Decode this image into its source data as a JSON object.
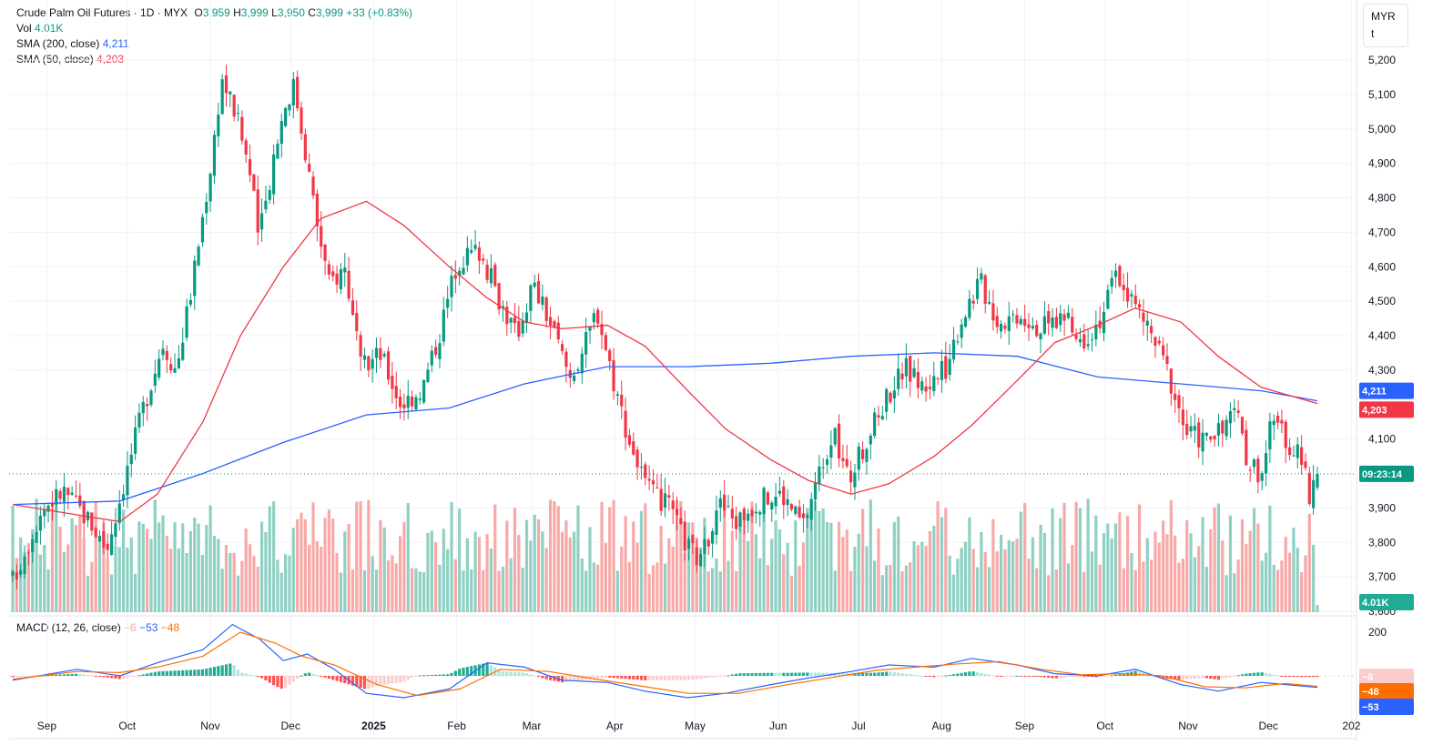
{
  "legend": {
    "symbol": "Crude Palm Oil Futures · 1D · MYX",
    "open_label": "O",
    "open": "3,959",
    "high_label": "H",
    "high": "3,999",
    "low_label": "L",
    "low": "3,950",
    "close_label": "C",
    "close": "3,999",
    "change": "+33 (+0.83%)",
    "vol_label": "Vol",
    "vol": "4.01K",
    "sma200_label": "SMA (200, close)",
    "sma200": "4,211",
    "sma50_label": "SMA (50, close)",
    "sma50": "4,203"
  },
  "macd_legend": {
    "label": "MACD (12, 26, close)",
    "hist": "−6",
    "macd": "−53",
    "signal": "−48"
  },
  "unit": {
    "currency": "MYR",
    "unit": "t"
  },
  "badges": {
    "sma200": "4,211",
    "sma50": "4,203",
    "timer": "09:23:14",
    "volume": "4.01K",
    "macd_hist": "−6",
    "macd_signal": "−48",
    "macd": "−53"
  },
  "colors": {
    "up": "#089981",
    "down": "#f23645",
    "sma200": "#2962ff",
    "sma50": "#f23645",
    "macd": "#2962ff",
    "signal": "#ff6d00"
  },
  "chart_data": {
    "type": "candlestick",
    "price_ticks": [
      "5,200",
      "5,100",
      "5,000",
      "4,900",
      "4,800",
      "4,700",
      "4,600",
      "4,500",
      "4,400",
      "4,300",
      "4,100",
      "3,900",
      "3,800",
      "3,700",
      "3,600"
    ],
    "macd_ticks": [
      "200"
    ],
    "x_ticks": [
      "Sep",
      "Oct",
      "Nov",
      "Dec",
      "2025",
      "Feb",
      "Mar",
      "Apr",
      "May",
      "Jun",
      "Jul",
      "Aug",
      "Sep",
      "Oct",
      "Nov",
      "Dec",
      "202"
    ],
    "ylim": [
      3550,
      5230
    ],
    "anchors": [
      [
        "2024-08-22",
        3690
      ],
      [
        "2024-09-02",
        3900
      ],
      [
        "2024-09-10",
        3950
      ],
      [
        "2024-09-20",
        3860
      ],
      [
        "2024-09-26",
        3780
      ],
      [
        "2024-10-03",
        3990
      ],
      [
        "2024-10-10",
        4200
      ],
      [
        "2024-10-17",
        4380
      ],
      [
        "2024-10-22",
        4300
      ],
      [
        "2024-10-28",
        4550
      ],
      [
        "2024-11-04",
        4900
      ],
      [
        "2024-11-08",
        5150
      ],
      [
        "2024-11-13",
        5050
      ],
      [
        "2024-11-18",
        4900
      ],
      [
        "2024-11-22",
        4680
      ],
      [
        "2024-11-28",
        4950
      ],
      [
        "2024-12-02",
        5080
      ],
      [
        "2024-12-05",
        5130
      ],
      [
        "2024-12-09",
        4950
      ],
      [
        "2024-12-13",
        4750
      ],
      [
        "2024-12-18",
        4550
      ],
      [
        "2024-12-24",
        4600
      ],
      [
        "2024-12-30",
        4300
      ],
      [
        "2025-01-06",
        4350
      ],
      [
        "2025-01-14",
        4200
      ],
      [
        "2025-01-22",
        4250
      ],
      [
        "2025-01-28",
        4400
      ],
      [
        "2025-02-04",
        4620
      ],
      [
        "2025-02-12",
        4650
      ],
      [
        "2025-02-20",
        4500
      ],
      [
        "2025-02-26",
        4400
      ],
      [
        "2025-03-04",
        4550
      ],
      [
        "2025-03-10",
        4450
      ],
      [
        "2025-03-18",
        4280
      ],
      [
        "2025-03-24",
        4380
      ],
      [
        "2025-03-28",
        4480
      ],
      [
        "2025-04-03",
        4280
      ],
      [
        "2025-04-09",
        4100
      ],
      [
        "2025-04-16",
        3950
      ],
      [
        "2025-04-24",
        3900
      ],
      [
        "2025-04-30",
        3800
      ],
      [
        "2025-05-06",
        3740
      ],
      [
        "2025-05-12",
        3920
      ],
      [
        "2025-05-19",
        3860
      ],
      [
        "2025-05-27",
        3920
      ],
      [
        "2025-06-05",
        3940
      ],
      [
        "2025-06-13",
        3850
      ],
      [
        "2025-06-18",
        3980
      ],
      [
        "2025-06-24",
        4120
      ],
      [
        "2025-06-30",
        3980
      ],
      [
        "2025-07-07",
        4100
      ],
      [
        "2025-07-14",
        4220
      ],
      [
        "2025-07-21",
        4310
      ],
      [
        "2025-07-28",
        4250
      ],
      [
        "2025-08-05",
        4300
      ],
      [
        "2025-08-11",
        4450
      ],
      [
        "2025-08-18",
        4560
      ],
      [
        "2025-08-25",
        4440
      ],
      [
        "2025-09-02",
        4470
      ],
      [
        "2025-09-10",
        4420
      ],
      [
        "2025-09-18",
        4460
      ],
      [
        "2025-09-24",
        4380
      ],
      [
        "2025-10-02",
        4450
      ],
      [
        "2025-10-08",
        4580
      ],
      [
        "2025-10-14",
        4500
      ],
      [
        "2025-10-20",
        4420
      ],
      [
        "2025-10-27",
        4300
      ],
      [
        "2025-11-03",
        4120
      ],
      [
        "2025-11-10",
        4100
      ],
      [
        "2025-11-17",
        4120
      ],
      [
        "2025-11-21",
        4200
      ],
      [
        "2025-11-25",
        4050
      ],
      [
        "2025-12-01",
        4000
      ],
      [
        "2025-12-05",
        4150
      ],
      [
        "2025-12-11",
        4090
      ],
      [
        "2025-12-16",
        4040
      ],
      [
        "2025-12-19",
        3940
      ],
      [
        "2025-12-22",
        3999
      ]
    ],
    "sma50_points": [
      [
        "2024-08-22",
        3910
      ],
      [
        "2024-09-15",
        3880
      ],
      [
        "2024-10-01",
        3860
      ],
      [
        "2024-10-15",
        3940
      ],
      [
        "2024-11-01",
        4150
      ],
      [
        "2024-11-15",
        4400
      ],
      [
        "2024-12-01",
        4600
      ],
      [
        "2024-12-15",
        4740
      ],
      [
        "2025-01-01",
        4790
      ],
      [
        "2025-01-15",
        4720
      ],
      [
        "2025-02-01",
        4600
      ],
      [
        "2025-02-15",
        4510
      ],
      [
        "2025-03-01",
        4440
      ],
      [
        "2025-03-15",
        4420
      ],
      [
        "2025-04-01",
        4430
      ],
      [
        "2025-04-15",
        4370
      ],
      [
        "2025-05-01",
        4240
      ],
      [
        "2025-05-15",
        4130
      ],
      [
        "2025-06-01",
        4040
      ],
      [
        "2025-06-15",
        3980
      ],
      [
        "2025-07-01",
        3940
      ],
      [
        "2025-07-15",
        3970
      ],
      [
        "2025-08-01",
        4050
      ],
      [
        "2025-08-15",
        4140
      ],
      [
        "2025-09-01",
        4270
      ],
      [
        "2025-09-15",
        4380
      ],
      [
        "2025-10-01",
        4430
      ],
      [
        "2025-10-15",
        4480
      ],
      [
        "2025-11-01",
        4440
      ],
      [
        "2025-11-15",
        4340
      ],
      [
        "2025-12-01",
        4250
      ],
      [
        "2025-12-22",
        4203
      ]
    ],
    "sma200_points": [
      [
        "2024-08-22",
        3910
      ],
      [
        "2024-10-01",
        3920
      ],
      [
        "2024-11-01",
        4000
      ],
      [
        "2024-12-01",
        4090
      ],
      [
        "2025-01-01",
        4170
      ],
      [
        "2025-02-01",
        4190
      ],
      [
        "2025-03-01",
        4260
      ],
      [
        "2025-04-01",
        4310
      ],
      [
        "2025-05-01",
        4310
      ],
      [
        "2025-06-01",
        4320
      ],
      [
        "2025-07-01",
        4340
      ],
      [
        "2025-08-01",
        4350
      ],
      [
        "2025-09-01",
        4340
      ],
      [
        "2025-10-01",
        4280
      ],
      [
        "2025-11-01",
        4260
      ],
      [
        "2025-12-01",
        4240
      ],
      [
        "2025-12-22",
        4211
      ]
    ],
    "macd_scale": [
      -150,
      260
    ],
    "macd_points": [
      [
        "2024-08-22",
        -20
      ],
      [
        "2024-09-15",
        30
      ],
      [
        "2024-10-01",
        0
      ],
      [
        "2024-10-15",
        60
      ],
      [
        "2024-11-01",
        120
      ],
      [
        "2024-11-12",
        235
      ],
      [
        "2024-11-22",
        170
      ],
      [
        "2024-12-01",
        70
      ],
      [
        "2024-12-10",
        100
      ],
      [
        "2024-12-20",
        30
      ],
      [
        "2025-01-01",
        -80
      ],
      [
        "2025-01-15",
        -100
      ],
      [
        "2025-02-01",
        -60
      ],
      [
        "2025-02-15",
        60
      ],
      [
        "2025-03-01",
        40
      ],
      [
        "2025-03-15",
        -20
      ],
      [
        "2025-04-01",
        -30
      ],
      [
        "2025-04-15",
        -70
      ],
      [
        "2025-05-01",
        -100
      ],
      [
        "2025-05-15",
        -80
      ],
      [
        "2025-06-01",
        -40
      ],
      [
        "2025-06-15",
        -10
      ],
      [
        "2025-07-01",
        20
      ],
      [
        "2025-07-15",
        50
      ],
      [
        "2025-08-01",
        40
      ],
      [
        "2025-08-15",
        80
      ],
      [
        "2025-09-01",
        50
      ],
      [
        "2025-09-15",
        10
      ],
      [
        "2025-10-01",
        0
      ],
      [
        "2025-10-15",
        30
      ],
      [
        "2025-11-01",
        -40
      ],
      [
        "2025-11-15",
        -70
      ],
      [
        "2025-12-01",
        -30
      ],
      [
        "2025-12-22",
        -53
      ]
    ],
    "signal_points": [
      [
        "2024-08-22",
        -15
      ],
      [
        "2024-09-15",
        20
      ],
      [
        "2024-10-01",
        15
      ],
      [
        "2024-10-15",
        40
      ],
      [
        "2024-11-01",
        90
      ],
      [
        "2024-11-15",
        200
      ],
      [
        "2024-11-28",
        150
      ],
      [
        "2024-12-08",
        90
      ],
      [
        "2024-12-20",
        50
      ],
      [
        "2025-01-05",
        -40
      ],
      [
        "2025-01-20",
        -90
      ],
      [
        "2025-02-05",
        -60
      ],
      [
        "2025-02-20",
        30
      ],
      [
        "2025-03-10",
        20
      ],
      [
        "2025-03-25",
        -10
      ],
      [
        "2025-04-10",
        -40
      ],
      [
        "2025-05-01",
        -80
      ],
      [
        "2025-05-20",
        -80
      ],
      [
        "2025-06-05",
        -45
      ],
      [
        "2025-06-25",
        -5
      ],
      [
        "2025-07-10",
        25
      ],
      [
        "2025-07-25",
        40
      ],
      [
        "2025-08-10",
        55
      ],
      [
        "2025-08-25",
        65
      ],
      [
        "2025-09-10",
        30
      ],
      [
        "2025-09-25",
        5
      ],
      [
        "2025-10-10",
        10
      ],
      [
        "2025-10-25",
        0
      ],
      [
        "2025-11-10",
        -50
      ],
      [
        "2025-11-25",
        -55
      ],
      [
        "2025-12-10",
        -35
      ],
      [
        "2025-12-22",
        -48
      ]
    ]
  }
}
